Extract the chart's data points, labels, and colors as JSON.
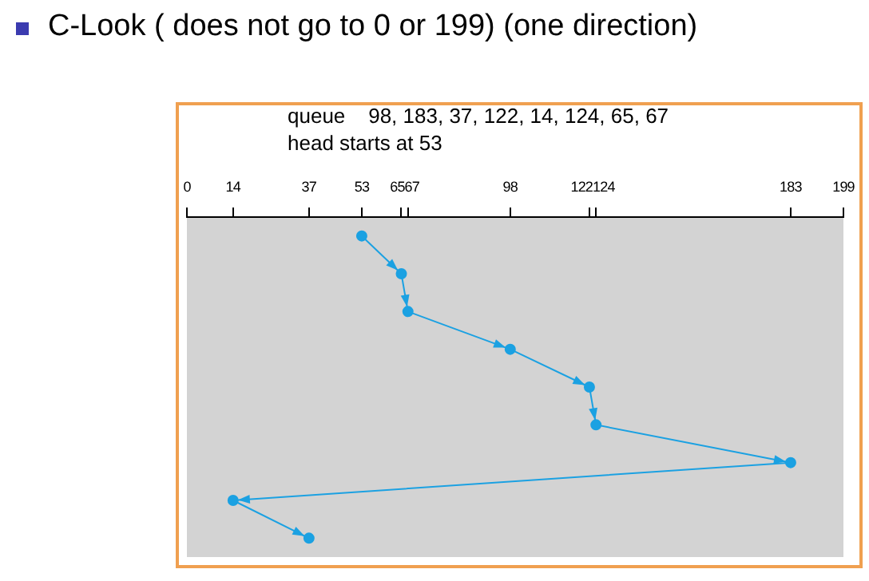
{
  "chart_data": {
    "type": "line",
    "title": "C-Look ( does not go to 0 or 199) (one direction)",
    "annotations": [
      "queue    98, 183, 37, 122, 14, 124, 65, 67",
      "head starts at 53"
    ],
    "orientation": "horizontal",
    "categories": [
      null,
      null,
      null,
      null,
      null,
      null,
      null,
      null,
      null
    ],
    "values": [
      53,
      65,
      67,
      98,
      122,
      124,
      183,
      14,
      37
    ],
    "color": "#1ba1e2",
    "marker": "circle",
    "line_style": "solid",
    "grid": false,
    "legend": false,
    "xlim": [
      0,
      199
    ],
    "xticks": [
      0,
      14,
      37,
      53,
      65,
      67,
      98,
      122,
      124,
      183,
      199
    ]
  }
}
